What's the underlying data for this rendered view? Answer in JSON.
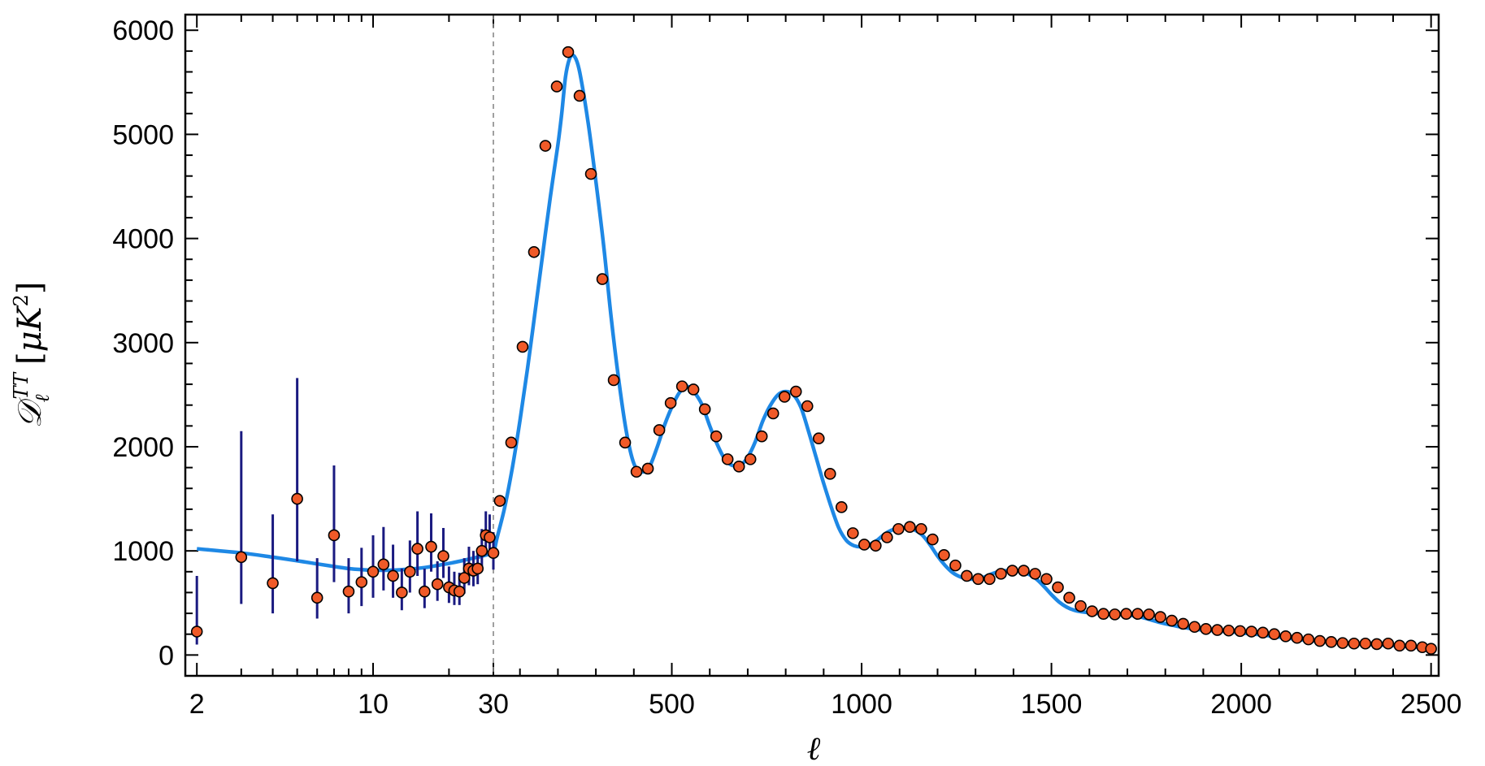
{
  "chart_data": {
    "type": "scatter",
    "xlabel": "ℓ",
    "ylabel": "D_ℓ^TT [μK²]",
    "ylabel_main": "𝒟",
    "ylabel_sub": "ℓ",
    "ylabel_sup": "TT",
    "ylabel_unit_open": "[",
    "ylabel_unit": "μK",
    "ylabel_unit_sup": "2",
    "ylabel_unit_close": "]",
    "ylim": [
      -200,
      6150
    ],
    "x_scale": "log for ℓ ≤ 30, linear for ℓ > 30",
    "x_split": 30,
    "xlim_low": [
      1.8,
      30
    ],
    "xlim_high": [
      30,
      2520
    ],
    "yticks": [
      0,
      1000,
      2000,
      3000,
      4000,
      5000,
      6000
    ],
    "ytick_labels": [
      "0",
      "1000",
      "2000",
      "3000",
      "4000",
      "5000",
      "6000"
    ],
    "xticks_low": [
      2,
      10,
      30
    ],
    "xticks_low_labels": [
      "2",
      "10",
      "30"
    ],
    "xticks_high": [
      500,
      1000,
      1500,
      2000,
      2500
    ],
    "xticks_high_labels": [
      "500",
      "1000",
      "1500",
      "2000",
      "2500"
    ],
    "colors": {
      "model": "#1e88e5",
      "points": "#f05a28",
      "point_edge": "#000000",
      "errorbar": "#1a1a80",
      "split_line": "#888888"
    },
    "model_curve": [
      [
        2,
        1020
      ],
      [
        3,
        980
      ],
      [
        4,
        940
      ],
      [
        5,
        905
      ],
      [
        6,
        875
      ],
      [
        7,
        850
      ],
      [
        8,
        830
      ],
      [
        9,
        820
      ],
      [
        10,
        815
      ],
      [
        12,
        815
      ],
      [
        14,
        825
      ],
      [
        16,
        840
      ],
      [
        18,
        860
      ],
      [
        20,
        880
      ],
      [
        22,
        900
      ],
      [
        25,
        930
      ],
      [
        28,
        960
      ],
      [
        30,
        990
      ],
      [
        40,
        1130
      ],
      [
        60,
        1420
      ],
      [
        80,
        1800
      ],
      [
        100,
        2250
      ],
      [
        120,
        2750
      ],
      [
        140,
        3300
      ],
      [
        160,
        3850
      ],
      [
        180,
        4400
      ],
      [
        200,
        4900
      ],
      [
        210,
        5200
      ],
      [
        220,
        5550
      ],
      [
        230,
        5720
      ],
      [
        240,
        5760
      ],
      [
        250,
        5700
      ],
      [
        260,
        5550
      ],
      [
        280,
        5100
      ],
      [
        300,
        4550
      ],
      [
        320,
        3950
      ],
      [
        340,
        3250
      ],
      [
        360,
        2650
      ],
      [
        380,
        2150
      ],
      [
        400,
        1840
      ],
      [
        420,
        1760
      ],
      [
        440,
        1800
      ],
      [
        460,
        1980
      ],
      [
        480,
        2200
      ],
      [
        500,
        2380
      ],
      [
        520,
        2520
      ],
      [
        540,
        2580
      ],
      [
        560,
        2520
      ],
      [
        580,
        2400
      ],
      [
        600,
        2200
      ],
      [
        620,
        2020
      ],
      [
        640,
        1880
      ],
      [
        660,
        1820
      ],
      [
        680,
        1820
      ],
      [
        700,
        1900
      ],
      [
        720,
        2050
      ],
      [
        740,
        2250
      ],
      [
        760,
        2400
      ],
      [
        780,
        2500
      ],
      [
        800,
        2530
      ],
      [
        820,
        2500
      ],
      [
        840,
        2380
      ],
      [
        860,
        2150
      ],
      [
        880,
        1900
      ],
      [
        900,
        1650
      ],
      [
        920,
        1420
      ],
      [
        940,
        1220
      ],
      [
        960,
        1100
      ],
      [
        980,
        1050
      ],
      [
        1000,
        1040
      ],
      [
        1020,
        1060
      ],
      [
        1040,
        1100
      ],
      [
        1060,
        1160
      ],
      [
        1080,
        1200
      ],
      [
        1100,
        1220
      ],
      [
        1120,
        1220
      ],
      [
        1140,
        1200
      ],
      [
        1160,
        1150
      ],
      [
        1180,
        1060
      ],
      [
        1200,
        950
      ],
      [
        1220,
        860
      ],
      [
        1240,
        790
      ],
      [
        1260,
        750
      ],
      [
        1280,
        730
      ],
      [
        1300,
        730
      ],
      [
        1320,
        745
      ],
      [
        1340,
        775
      ],
      [
        1360,
        800
      ],
      [
        1380,
        810
      ],
      [
        1400,
        810
      ],
      [
        1420,
        800
      ],
      [
        1440,
        775
      ],
      [
        1460,
        730
      ],
      [
        1480,
        660
      ],
      [
        1500,
        580
      ],
      [
        1520,
        510
      ],
      [
        1540,
        460
      ],
      [
        1560,
        430
      ],
      [
        1580,
        415
      ],
      [
        1600,
        405
      ],
      [
        1620,
        398
      ],
      [
        1640,
        395
      ],
      [
        1660,
        393
      ],
      [
        1680,
        390
      ],
      [
        1700,
        385
      ],
      [
        1720,
        375
      ],
      [
        1740,
        360
      ],
      [
        1760,
        340
      ],
      [
        1780,
        318
      ],
      [
        1800,
        300
      ],
      [
        1820,
        285
      ],
      [
        1840,
        270
      ],
      [
        1860,
        258
      ],
      [
        1880,
        248
      ],
      [
        1900,
        240
      ],
      [
        1920,
        235
      ],
      [
        1940,
        230
      ],
      [
        1960,
        225
      ],
      [
        1980,
        220
      ],
      [
        2000,
        212
      ],
      [
        2050,
        195
      ],
      [
        2100,
        172
      ],
      [
        2150,
        150
      ],
      [
        2200,
        132
      ],
      [
        2250,
        118
      ],
      [
        2300,
        108
      ],
      [
        2350,
        98
      ],
      [
        2400,
        90
      ],
      [
        2450,
        78
      ],
      [
        2500,
        65
      ]
    ],
    "low_ell_points": [
      {
        "x": 2,
        "y": 225,
        "lo": 100,
        "hi": 760
      },
      {
        "x": 3,
        "y": 940,
        "lo": 490,
        "hi": 2150
      },
      {
        "x": 4,
        "y": 690,
        "lo": 400,
        "hi": 1350
      },
      {
        "x": 5,
        "y": 1500,
        "lo": 900,
        "hi": 2660
      },
      {
        "x": 6,
        "y": 550,
        "lo": 350,
        "hi": 930
      },
      {
        "x": 7,
        "y": 1150,
        "lo": 700,
        "hi": 1820
      },
      {
        "x": 8,
        "y": 610,
        "lo": 400,
        "hi": 930
      },
      {
        "x": 9,
        "y": 700,
        "lo": 470,
        "hi": 1030
      },
      {
        "x": 10,
        "y": 800,
        "lo": 550,
        "hi": 1150
      },
      {
        "x": 11,
        "y": 870,
        "lo": 620,
        "hi": 1230
      },
      {
        "x": 12,
        "y": 760,
        "lo": 550,
        "hi": 1060
      },
      {
        "x": 13,
        "y": 600,
        "lo": 430,
        "hi": 830
      },
      {
        "x": 14,
        "y": 800,
        "lo": 600,
        "hi": 1100
      },
      {
        "x": 15,
        "y": 1020,
        "lo": 760,
        "hi": 1380
      },
      {
        "x": 16,
        "y": 610,
        "lo": 450,
        "hi": 830
      },
      {
        "x": 17,
        "y": 1040,
        "lo": 800,
        "hi": 1360
      },
      {
        "x": 18,
        "y": 680,
        "lo": 520,
        "hi": 900
      },
      {
        "x": 19,
        "y": 950,
        "lo": 740,
        "hi": 1220
      },
      {
        "x": 20,
        "y": 650,
        "lo": 500,
        "hi": 850
      },
      {
        "x": 21,
        "y": 620,
        "lo": 480,
        "hi": 800
      },
      {
        "x": 22,
        "y": 610,
        "lo": 480,
        "hi": 790
      },
      {
        "x": 23,
        "y": 740,
        "lo": 590,
        "hi": 930
      },
      {
        "x": 24,
        "y": 830,
        "lo": 670,
        "hi": 1040
      },
      {
        "x": 25,
        "y": 810,
        "lo": 660,
        "hi": 1000
      },
      {
        "x": 26,
        "y": 830,
        "lo": 680,
        "hi": 1020
      },
      {
        "x": 27,
        "y": 1000,
        "lo": 830,
        "hi": 1210
      },
      {
        "x": 28,
        "y": 1150,
        "lo": 960,
        "hi": 1380
      },
      {
        "x": 29,
        "y": 1130,
        "lo": 950,
        "hi": 1350
      },
      {
        "x": 30,
        "y": 980,
        "lo": 820,
        "hi": 1180
      }
    ],
    "high_ell_points": [
      {
        "x": 47,
        "y": 1480
      },
      {
        "x": 77,
        "y": 2040
      },
      {
        "x": 107,
        "y": 2960
      },
      {
        "x": 137,
        "y": 3870
      },
      {
        "x": 167,
        "y": 4890
      },
      {
        "x": 197,
        "y": 5460
      },
      {
        "x": 227,
        "y": 5790
      },
      {
        "x": 257,
        "y": 5370
      },
      {
        "x": 287,
        "y": 4620
      },
      {
        "x": 317,
        "y": 3610
      },
      {
        "x": 347,
        "y": 2640
      },
      {
        "x": 377,
        "y": 2040
      },
      {
        "x": 407,
        "y": 1760
      },
      {
        "x": 437,
        "y": 1790
      },
      {
        "x": 467,
        "y": 2160
      },
      {
        "x": 497,
        "y": 2420
      },
      {
        "x": 527,
        "y": 2580
      },
      {
        "x": 557,
        "y": 2550
      },
      {
        "x": 587,
        "y": 2360
      },
      {
        "x": 617,
        "y": 2100
      },
      {
        "x": 647,
        "y": 1880
      },
      {
        "x": 677,
        "y": 1810
      },
      {
        "x": 707,
        "y": 1880
      },
      {
        "x": 737,
        "y": 2100
      },
      {
        "x": 767,
        "y": 2320
      },
      {
        "x": 797,
        "y": 2480
      },
      {
        "x": 827,
        "y": 2530
      },
      {
        "x": 857,
        "y": 2390
      },
      {
        "x": 887,
        "y": 2080
      },
      {
        "x": 917,
        "y": 1740
      },
      {
        "x": 947,
        "y": 1420
      },
      {
        "x": 977,
        "y": 1170
      },
      {
        "x": 1007,
        "y": 1060
      },
      {
        "x": 1037,
        "y": 1050
      },
      {
        "x": 1067,
        "y": 1130
      },
      {
        "x": 1097,
        "y": 1210
      },
      {
        "x": 1127,
        "y": 1230
      },
      {
        "x": 1157,
        "y": 1210
      },
      {
        "x": 1187,
        "y": 1110
      },
      {
        "x": 1217,
        "y": 960
      },
      {
        "x": 1247,
        "y": 860
      },
      {
        "x": 1277,
        "y": 760
      },
      {
        "x": 1307,
        "y": 730
      },
      {
        "x": 1337,
        "y": 730
      },
      {
        "x": 1367,
        "y": 780
      },
      {
        "x": 1397,
        "y": 810
      },
      {
        "x": 1427,
        "y": 810
      },
      {
        "x": 1457,
        "y": 780
      },
      {
        "x": 1487,
        "y": 730
      },
      {
        "x": 1517,
        "y": 650
      },
      {
        "x": 1547,
        "y": 550
      },
      {
        "x": 1577,
        "y": 470
      },
      {
        "x": 1607,
        "y": 420
      },
      {
        "x": 1637,
        "y": 395
      },
      {
        "x": 1667,
        "y": 390
      },
      {
        "x": 1697,
        "y": 395
      },
      {
        "x": 1727,
        "y": 395
      },
      {
        "x": 1757,
        "y": 390
      },
      {
        "x": 1787,
        "y": 365
      },
      {
        "x": 1817,
        "y": 330
      },
      {
        "x": 1847,
        "y": 300
      },
      {
        "x": 1877,
        "y": 270
      },
      {
        "x": 1907,
        "y": 250
      },
      {
        "x": 1937,
        "y": 240
      },
      {
        "x": 1967,
        "y": 235
      },
      {
        "x": 1997,
        "y": 230
      },
      {
        "x": 2027,
        "y": 225
      },
      {
        "x": 2057,
        "y": 215
      },
      {
        "x": 2087,
        "y": 200
      },
      {
        "x": 2117,
        "y": 180
      },
      {
        "x": 2147,
        "y": 165
      },
      {
        "x": 2177,
        "y": 150
      },
      {
        "x": 2207,
        "y": 135
      },
      {
        "x": 2237,
        "y": 125
      },
      {
        "x": 2267,
        "y": 115
      },
      {
        "x": 2297,
        "y": 110
      },
      {
        "x": 2327,
        "y": 110
      },
      {
        "x": 2357,
        "y": 105
      },
      {
        "x": 2387,
        "y": 110
      },
      {
        "x": 2417,
        "y": 90
      },
      {
        "x": 2447,
        "y": 90
      },
      {
        "x": 2477,
        "y": 75
      },
      {
        "x": 2500,
        "y": 60
      }
    ]
  }
}
